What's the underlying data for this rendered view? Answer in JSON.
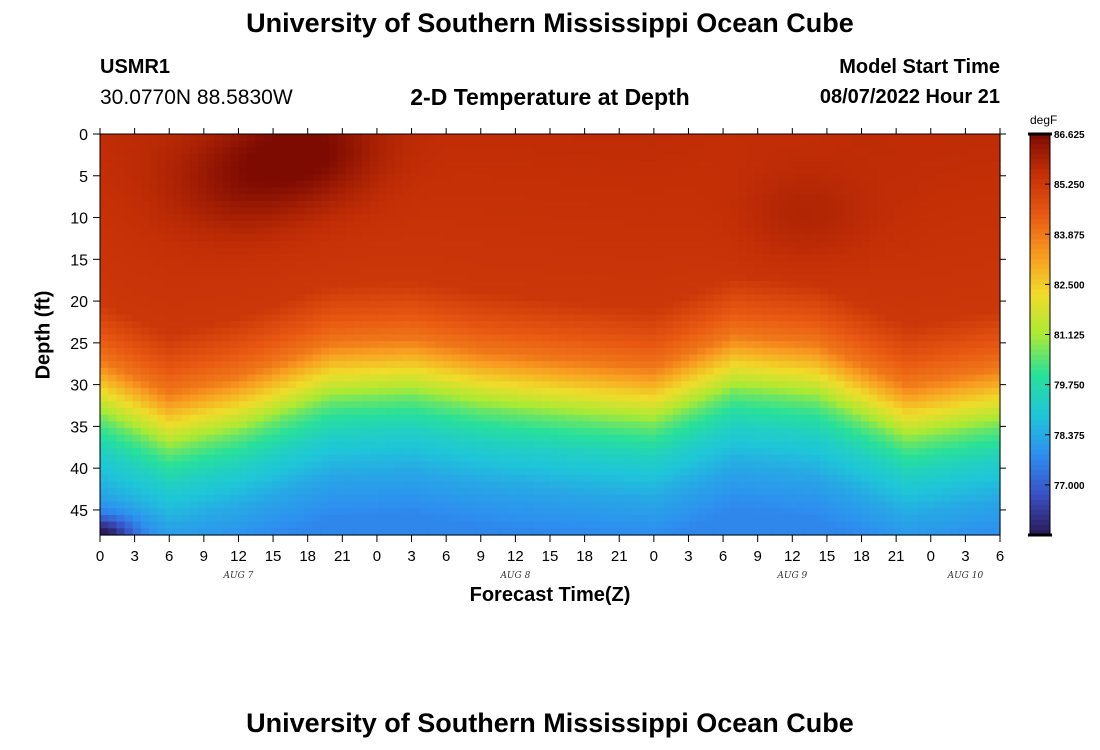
{
  "header": {
    "title": "University of Southern Mississippi Ocean Cube",
    "station_id": "USMR1",
    "station_coords": "30.0770N  88.5830W",
    "subtitle": "2-D Temperature at Depth",
    "model_start_label": "Model Start Time",
    "model_start_value": "08/07/2022 Hour 21"
  },
  "footer": {
    "title": "University of Southern Mississippi Ocean Cube"
  },
  "chart_data": {
    "type": "heatmap",
    "title": "2-D Temperature at Depth",
    "xlabel": "Forecast Time(Z)",
    "ylabel": "Depth (ft)",
    "x_range_hours": [
      0,
      78
    ],
    "x_tick_labels": [
      "0",
      "3",
      "6",
      "9",
      "12",
      "15",
      "18",
      "21",
      "0",
      "3",
      "6",
      "9",
      "12",
      "15",
      "18",
      "21",
      "0",
      "3",
      "6",
      "9",
      "12",
      "15",
      "18",
      "21",
      "0",
      "3",
      "6"
    ],
    "date_labels": [
      {
        "label": "AUG 7",
        "hour": 12
      },
      {
        "label": "AUG 8",
        "hour": 36
      },
      {
        "label": "AUG 9",
        "hour": 60
      },
      {
        "label": "AUG 10",
        "hour": 75
      }
    ],
    "y_range_ft": [
      0,
      48
    ],
    "y_ticks": [
      0,
      5,
      10,
      15,
      20,
      25,
      30,
      35,
      40,
      45
    ],
    "colorbar": {
      "unit": "degF",
      "min": 75.625,
      "max": 86.625,
      "tick_labels": [
        "86.625",
        "85.250",
        "83.875",
        "82.500",
        "81.125",
        "79.750",
        "78.375",
        "77.000"
      ],
      "colors": [
        "#2a1a55",
        "#3a50c4",
        "#2e8ef0",
        "#1fc6d8",
        "#28e09a",
        "#aaea34",
        "#f0dc2a",
        "#f89a20",
        "#e85812",
        "#c42f06",
        "#7e0b02"
      ]
    },
    "depth_profile": {
      "depths_ft": [
        0,
        20,
        27,
        31,
        34,
        38,
        43,
        48
      ],
      "temps_degF": [
        85.6,
        85.3,
        83.9,
        82.1,
        80.6,
        79.3,
        78.3,
        77.7
      ]
    },
    "thermocline_shift_ft": {
      "hours": [
        0,
        6,
        12,
        20,
        27,
        33,
        40,
        48,
        55,
        62,
        70,
        78
      ],
      "shift": [
        0,
        -4,
        -2,
        2,
        2.5,
        1,
        0,
        -1,
        3,
        2,
        -3,
        -1
      ]
    },
    "surface_warm_anomalies": [
      {
        "hour": 12,
        "depth_ft": 6,
        "delta_degF": 0.7
      },
      {
        "hour": 18,
        "depth_ft": 2,
        "delta_degF": 1.1
      },
      {
        "hour": 61,
        "depth_ft": 10,
        "delta_degF": 0.4
      }
    ],
    "bottom_cold_anomaly": {
      "hour": 0,
      "depth_ft": 48,
      "delta_degF": -2.2
    }
  }
}
